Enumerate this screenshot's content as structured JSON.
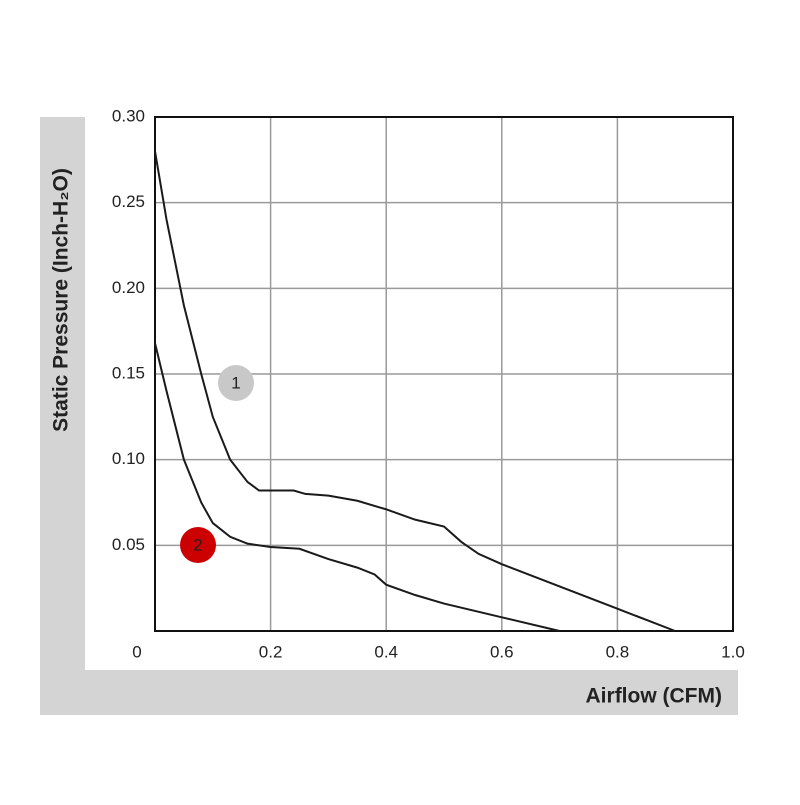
{
  "chart_data": {
    "type": "line",
    "x_label": "Airflow (CFM)",
    "y_label": "Static Pressure (Inch-H₂O)",
    "xlim": [
      0,
      1.0
    ],
    "ylim": [
      0,
      0.3
    ],
    "xticks": [
      0,
      0.2,
      0.4,
      0.6,
      0.8,
      {
        "value": 1.0,
        "label": "1.0"
      }
    ],
    "yticks": [
      0.05,
      {
        "value": 0.1,
        "label": "0.10"
      },
      0.15,
      {
        "value": 0.2,
        "label": "0.20"
      },
      0.25,
      {
        "value": 0.3,
        "label": "0.30"
      }
    ],
    "grid": true,
    "series": [
      {
        "name": "1",
        "color": "#1a1a1a",
        "marker_color": "#c8c8c8",
        "x": [
          0,
          0.02,
          0.05,
          0.08,
          0.1,
          0.13,
          0.16,
          0.18,
          0.2,
          0.24,
          0.26,
          0.3,
          0.35,
          0.4,
          0.45,
          0.5,
          0.53,
          0.56,
          0.6,
          0.7,
          0.8,
          0.9
        ],
        "values": [
          0.28,
          0.24,
          0.19,
          0.15,
          0.125,
          0.1,
          0.087,
          0.082,
          0.082,
          0.082,
          0.08,
          0.079,
          0.076,
          0.071,
          0.065,
          0.061,
          0.052,
          0.045,
          0.039,
          0.026,
          0.013,
          0
        ]
      },
      {
        "name": "2",
        "color": "#1a1a1a",
        "marker_color": "#cc0000",
        "x": [
          0,
          0.02,
          0.05,
          0.08,
          0.1,
          0.13,
          0.16,
          0.2,
          0.25,
          0.3,
          0.35,
          0.38,
          0.4,
          0.45,
          0.5,
          0.6,
          0.7
        ],
        "values": [
          0.168,
          0.14,
          0.1,
          0.075,
          0.063,
          0.055,
          0.051,
          0.049,
          0.048,
          0.042,
          0.037,
          0.033,
          0.027,
          0.021,
          0.016,
          0.008,
          0
        ]
      }
    ]
  }
}
